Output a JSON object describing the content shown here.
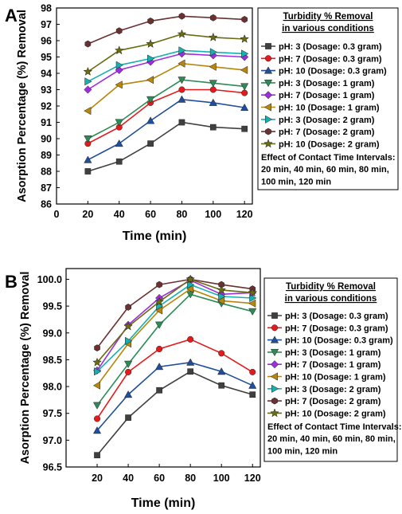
{
  "panels": [
    {
      "letter": "A",
      "chart_data": {
        "type": "line",
        "x": [
          20,
          40,
          60,
          80,
          100,
          120
        ],
        "xlabel": "Time (min)",
        "ylabel": "Asorption Percentage (%) Removal",
        "xlim": [
          0,
          125
        ],
        "ylim": [
          86,
          98
        ],
        "xticks": [
          "0",
          "20",
          "40",
          "60",
          "80",
          "100",
          "120"
        ],
        "yticks": [
          "86",
          "87",
          "88",
          "89",
          "90",
          "91",
          "92",
          "93",
          "94",
          "95",
          "96",
          "97",
          "98"
        ],
        "legend_placement": "right",
        "legend_title": [
          "Turbidity % Removal",
          "in various conditions"
        ],
        "note": [
          "Effect of Contact Time Intervals:",
          "20 min, 40 min, 60 min, 80 min,",
          "100 min, 120 min"
        ],
        "series": [
          {
            "name": "pH: 3 (Dosage: 0.3 gram)",
            "color": "#404040",
            "marker": "square",
            "values": [
              88.0,
              88.6,
              89.7,
              91.0,
              90.7,
              90.6
            ]
          },
          {
            "name": "pH: 7 (Dosage: 0.3 gram)",
            "color": "#e41a1c",
            "marker": "circle",
            "values": [
              89.7,
              90.7,
              92.2,
              93.0,
              93.0,
              92.8
            ]
          },
          {
            "name": "pH: 10 (Dosage: 0.3 gram)",
            "color": "#1f4e9c",
            "marker": "triangle-up",
            "values": [
              88.7,
              89.7,
              91.1,
              92.4,
              92.2,
              91.9
            ]
          },
          {
            "name": "pH: 3 (Dosage: 1 gram)",
            "color": "#2e8b57",
            "marker": "triangle-down",
            "values": [
              90.0,
              91.0,
              92.4,
              93.6,
              93.4,
              93.2
            ]
          },
          {
            "name": "pH: 7 (Dosage: 1 gram)",
            "color": "#9b30d9",
            "marker": "diamond",
            "values": [
              93.0,
              94.2,
              94.7,
              95.2,
              95.1,
              95.0
            ]
          },
          {
            "name": "pH: 10 (Dosage: 1 gram)",
            "color": "#b8860b",
            "marker": "triangle-left",
            "values": [
              91.7,
              93.3,
              93.6,
              94.6,
              94.4,
              94.2
            ]
          },
          {
            "name": "pH: 3 (Dosage: 2 gram)",
            "color": "#17b0b0",
            "marker": "triangle-right",
            "values": [
              93.5,
              94.5,
              94.9,
              95.4,
              95.3,
              95.2
            ]
          },
          {
            "name": "pH: 7 (Dosage: 2 gram)",
            "color": "#6b3030",
            "marker": "hexagon",
            "values": [
              95.8,
              96.6,
              97.2,
              97.5,
              97.4,
              97.3
            ]
          },
          {
            "name": "pH: 10 (Dosage: 2 gram)",
            "color": "#6b6b10",
            "marker": "star",
            "values": [
              94.1,
              95.4,
              95.8,
              96.4,
              96.2,
              96.1
            ]
          }
        ]
      }
    },
    {
      "letter": "B",
      "chart_data": {
        "type": "line",
        "x": [
          20,
          40,
          60,
          80,
          100,
          120
        ],
        "xlabel": "Time (min)",
        "ylabel": "Asorption Percentage (%) Removal",
        "xlim": [
          0,
          125
        ],
        "ylim": [
          96.5,
          100.2
        ],
        "xticks": [
          "20",
          "40",
          "60",
          "80",
          "100",
          "120"
        ],
        "yticks": [
          "96.5",
          "97.0",
          "97.5",
          "98.0",
          "98.5",
          "99.0",
          "99.5",
          "100.0"
        ],
        "legend_placement": "right",
        "legend_title": [
          "Turbidity % Removal",
          "in various conditions"
        ],
        "note": [
          "Effect of Contact Time Intervals:",
          "20 min, 40 min, 60 min, 80 min,",
          "100 min, 120 min"
        ],
        "series": [
          {
            "name": "pH: 3 (Dosage: 0.3 gram)",
            "color": "#404040",
            "marker": "square",
            "values": [
              96.72,
              97.42,
              97.93,
              98.28,
              98.02,
              97.85
            ]
          },
          {
            "name": "pH: 7 (Dosage: 0.3 gram)",
            "color": "#e41a1c",
            "marker": "circle",
            "values": [
              97.4,
              98.27,
              98.7,
              98.88,
              98.62,
              98.27
            ]
          },
          {
            "name": "pH: 10 (Dosage: 0.3 gram)",
            "color": "#1f4e9c",
            "marker": "triangle-up",
            "values": [
              97.18,
              97.85,
              98.37,
              98.45,
              98.28,
              98.02
            ]
          },
          {
            "name": "pH: 3 (Dosage: 1 gram)",
            "color": "#2e8b57",
            "marker": "triangle-down",
            "values": [
              97.65,
              98.42,
              99.15,
              99.72,
              99.55,
              99.4
            ]
          },
          {
            "name": "pH: 7 (Dosage: 1 gram)",
            "color": "#9b30d9",
            "marker": "diamond",
            "values": [
              98.3,
              99.15,
              99.65,
              99.98,
              99.72,
              99.75
            ]
          },
          {
            "name": "pH: 10 (Dosage: 1 gram)",
            "color": "#b8860b",
            "marker": "triangle-left",
            "values": [
              98.02,
              98.8,
              99.42,
              99.82,
              99.6,
              99.55
            ]
          },
          {
            "name": "pH: 3 (Dosage: 2 gram)",
            "color": "#17b0b0",
            "marker": "triangle-right",
            "values": [
              98.28,
              98.85,
              99.5,
              99.9,
              99.68,
              99.65
            ]
          },
          {
            "name": "pH: 7 (Dosage: 2 gram)",
            "color": "#6b3030",
            "marker": "hexagon",
            "values": [
              98.72,
              99.48,
              99.9,
              100.0,
              99.9,
              99.82
            ]
          },
          {
            "name": "pH: 10 (Dosage: 2 gram)",
            "color": "#6b6b10",
            "marker": "star",
            "values": [
              98.45,
              99.12,
              99.58,
              100.0,
              99.8,
              99.75
            ]
          }
        ]
      }
    }
  ]
}
